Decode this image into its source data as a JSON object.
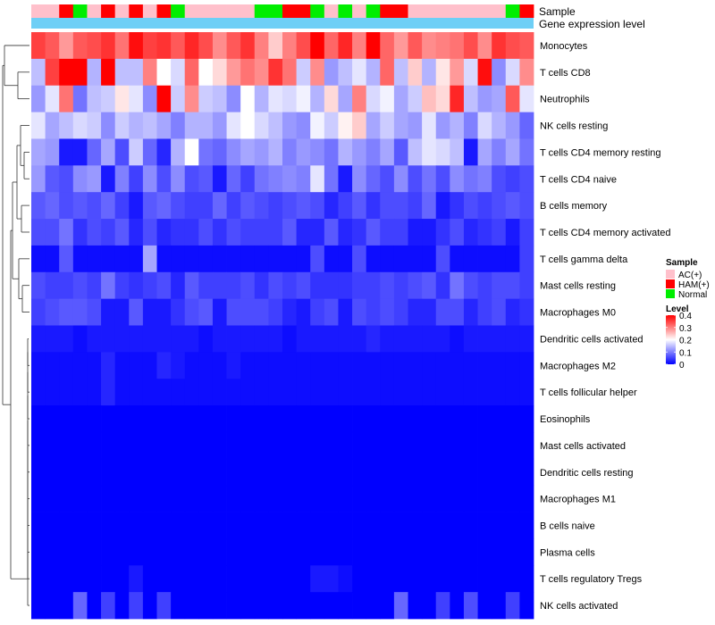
{
  "chart_data": {
    "type": "heatmap",
    "title": "",
    "annotation_tracks": [
      "Sample",
      "Gene expression level"
    ],
    "sample_groups": [
      "AC(+)",
      "AC(+)",
      "HAM(+)",
      "Normal",
      "AC(+)",
      "HAM(+)",
      "AC(+)",
      "HAM(+)",
      "AC(+)",
      "HAM(+)",
      "Normal",
      "AC(+)",
      "AC(+)",
      "AC(+)",
      "AC(+)",
      "AC(+)",
      "Normal",
      "Normal",
      "HAM(+)",
      "HAM(+)",
      "Normal",
      "AC(+)",
      "Normal",
      "AC(+)",
      "Normal",
      "HAM(+)",
      "HAM(+)",
      "AC(+)",
      "AC(+)",
      "AC(+)",
      "AC(+)",
      "AC(+)",
      "AC(+)",
      "AC(+)",
      "Normal",
      "HAM(+)"
    ],
    "rows": [
      {
        "name": "Monocytes",
        "values": [
          0.35,
          0.33,
          0.28,
          0.33,
          0.34,
          0.36,
          0.31,
          0.39,
          0.35,
          0.36,
          0.33,
          0.37,
          0.34,
          0.29,
          0.33,
          0.36,
          0.3,
          0.24,
          0.3,
          0.34,
          0.41,
          0.32,
          0.37,
          0.3,
          0.4,
          0.32,
          0.28,
          0.33,
          0.29,
          0.3,
          0.31,
          0.34,
          0.29,
          0.36,
          0.34,
          0.33
        ]
      },
      {
        "name": "T cells CD8",
        "values": [
          0.15,
          0.35,
          0.4,
          0.4,
          0.14,
          0.4,
          0.15,
          0.15,
          0.3,
          0.2,
          0.17,
          0.32,
          0.2,
          0.23,
          0.28,
          0.31,
          0.29,
          0.36,
          0.31,
          0.16,
          0.29,
          0.12,
          0.15,
          0.18,
          0.14,
          0.32,
          0.15,
          0.24,
          0.14,
          0.22,
          0.28,
          0.17,
          0.39,
          0.11,
          0.17,
          0.29
        ]
      },
      {
        "name": "Neutrophils",
        "values": [
          0.12,
          0.18,
          0.31,
          0.09,
          0.15,
          0.16,
          0.22,
          0.18,
          0.11,
          0.4,
          0.16,
          0.29,
          0.16,
          0.15,
          0.11,
          0.2,
          0.14,
          0.18,
          0.17,
          0.19,
          0.14,
          0.23,
          0.13,
          0.3,
          0.17,
          0.19,
          0.13,
          0.16,
          0.25,
          0.23,
          0.37,
          0.15,
          0.12,
          0.13,
          0.33,
          0.18
        ]
      },
      {
        "name": "NK cells resting",
        "values": [
          0.18,
          0.13,
          0.15,
          0.17,
          0.16,
          0.11,
          0.16,
          0.14,
          0.15,
          0.13,
          0.1,
          0.14,
          0.14,
          0.12,
          0.18,
          0.2,
          0.17,
          0.15,
          0.12,
          0.11,
          0.19,
          0.16,
          0.21,
          0.24,
          0.13,
          0.16,
          0.13,
          0.12,
          0.18,
          0.12,
          0.14,
          0.1,
          0.17,
          0.14,
          0.12,
          0.08
        ]
      },
      {
        "name": "T cells CD4 memory resting",
        "values": [
          0.13,
          0.12,
          0.02,
          0.02,
          0.08,
          0.13,
          0.06,
          0.16,
          0.08,
          0.03,
          0.14,
          0.2,
          0.09,
          0.08,
          0.11,
          0.13,
          0.12,
          0.14,
          0.1,
          0.12,
          0.11,
          0.09,
          0.14,
          0.12,
          0.1,
          0.13,
          0.07,
          0.15,
          0.18,
          0.17,
          0.15,
          0.02,
          0.13,
          0.1,
          0.13,
          0.09
        ]
      },
      {
        "name": "T cells CD4 naive",
        "values": [
          0.12,
          0.07,
          0.06,
          0.11,
          0.12,
          0.02,
          0.1,
          0.05,
          0.11,
          0.06,
          0.11,
          0.06,
          0.07,
          0.02,
          0.08,
          0.05,
          0.09,
          0.1,
          0.11,
          0.1,
          0.18,
          0.09,
          0.02,
          0.11,
          0.08,
          0.06,
          0.11,
          0.06,
          0.09,
          0.06,
          0.11,
          0.09,
          0.1,
          0.06,
          0.05,
          0.06
        ]
      },
      {
        "name": "B cells memory",
        "values": [
          0.07,
          0.08,
          0.06,
          0.07,
          0.06,
          0.08,
          0.05,
          0.02,
          0.07,
          0.08,
          0.06,
          0.05,
          0.05,
          0.08,
          0.05,
          0.07,
          0.06,
          0.05,
          0.06,
          0.07,
          0.06,
          0.03,
          0.05,
          0.07,
          0.04,
          0.06,
          0.06,
          0.05,
          0.08,
          0.02,
          0.04,
          0.06,
          0.05,
          0.06,
          0.07,
          0.06
        ]
      },
      {
        "name": "T cells CD4 memory activated",
        "values": [
          0.06,
          0.06,
          0.09,
          0.04,
          0.06,
          0.05,
          0.07,
          0.03,
          0.06,
          0.03,
          0.04,
          0.04,
          0.06,
          0.04,
          0.06,
          0.05,
          0.05,
          0.05,
          0.07,
          0.03,
          0.03,
          0.07,
          0.03,
          0.04,
          0.07,
          0.05,
          0.05,
          0.02,
          0.02,
          0.04,
          0.06,
          0.03,
          0.04,
          0.05,
          0.02,
          0.05
        ]
      },
      {
        "name": "T cells gamma delta",
        "values": [
          0.01,
          0.01,
          0.07,
          0.01,
          0.01,
          0.01,
          0.01,
          0.01,
          0.13,
          0.01,
          0.01,
          0.01,
          0.01,
          0.01,
          0.01,
          0.01,
          0.01,
          0.01,
          0.01,
          0.01,
          0.06,
          0.01,
          0.01,
          0.06,
          0.01,
          0.01,
          0.01,
          0.01,
          0.01,
          0.06,
          0.01,
          0.01,
          0.01,
          0.01,
          0.01,
          0.05
        ]
      },
      {
        "name": "Mast cells resting",
        "values": [
          0.06,
          0.05,
          0.05,
          0.06,
          0.05,
          0.09,
          0.05,
          0.04,
          0.05,
          0.06,
          0.03,
          0.07,
          0.05,
          0.05,
          0.05,
          0.06,
          0.04,
          0.06,
          0.05,
          0.06,
          0.04,
          0.04,
          0.04,
          0.05,
          0.05,
          0.06,
          0.05,
          0.06,
          0.07,
          0.04,
          0.09,
          0.06,
          0.05,
          0.06,
          0.06,
          0.05
        ]
      },
      {
        "name": "Macrophages M0",
        "values": [
          0.05,
          0.06,
          0.07,
          0.07,
          0.06,
          0.02,
          0.02,
          0.07,
          0.02,
          0.02,
          0.04,
          0.06,
          0.07,
          0.02,
          0.06,
          0.06,
          0.06,
          0.05,
          0.03,
          0.02,
          0.05,
          0.06,
          0.02,
          0.06,
          0.05,
          0.06,
          0.05,
          0.03,
          0.03,
          0.06,
          0.06,
          0.03,
          0.05,
          0.06,
          0.03,
          0.04
        ]
      },
      {
        "name": "Dendritic cells activated",
        "values": [
          0.02,
          0.02,
          0.02,
          0.01,
          0.02,
          0.02,
          0.02,
          0.02,
          0.02,
          0.02,
          0.02,
          0.02,
          0.01,
          0.02,
          0.02,
          0.02,
          0.02,
          0.02,
          0.01,
          0.02,
          0.02,
          0.02,
          0.02,
          0.02,
          0.03,
          0.02,
          0.02,
          0.02,
          0.02,
          0.02,
          0.01,
          0.02,
          0.02,
          0.02,
          0.02,
          0.02
        ]
      },
      {
        "name": "Macrophages M2",
        "values": [
          0.01,
          0.01,
          0.01,
          0.01,
          0.01,
          0.03,
          0.01,
          0.01,
          0.01,
          0.03,
          0.02,
          0.01,
          0.01,
          0.01,
          0.02,
          0.01,
          0.01,
          0.01,
          0.01,
          0.01,
          0.01,
          0.01,
          0.01,
          0.01,
          0.01,
          0.01,
          0.01,
          0.01,
          0.01,
          0.01,
          0.01,
          0.01,
          0.01,
          0.01,
          0.01,
          0.01
        ]
      },
      {
        "name": "T cells follicular helper",
        "values": [
          0.01,
          0.01,
          0.01,
          0.01,
          0.01,
          0.03,
          0.01,
          0.01,
          0.01,
          0.01,
          0.01,
          0.01,
          0.01,
          0.01,
          0.01,
          0.01,
          0.01,
          0.01,
          0.01,
          0.01,
          0.01,
          0.01,
          0.01,
          0.01,
          0.01,
          0.01,
          0.01,
          0.01,
          0.01,
          0.01,
          0.01,
          0.01,
          0.01,
          0.01,
          0.01,
          0.01
        ]
      },
      {
        "name": "Eosinophils",
        "values": [
          0.0,
          0.0,
          0.0,
          0.0,
          0.0,
          0.0,
          0.0,
          0.0,
          0.0,
          0.0,
          0.0,
          0.0,
          0.0,
          0.0,
          0.0,
          0.0,
          0.0,
          0.0,
          0.0,
          0.0,
          0.0,
          0.0,
          0.0,
          0.0,
          0.0,
          0.0,
          0.0,
          0.0,
          0.0,
          0.0,
          0.0,
          0.0,
          0.0,
          0.0,
          0.0,
          0.0
        ]
      },
      {
        "name": "Mast cells activated",
        "values": [
          0.0,
          0.0,
          0.0,
          0.0,
          0.0,
          0.0,
          0.0,
          0.0,
          0.0,
          0.0,
          0.0,
          0.0,
          0.0,
          0.0,
          0.0,
          0.0,
          0.0,
          0.0,
          0.0,
          0.0,
          0.0,
          0.0,
          0.0,
          0.0,
          0.0,
          0.0,
          0.0,
          0.0,
          0.0,
          0.0,
          0.0,
          0.0,
          0.0,
          0.0,
          0.0,
          0.0
        ]
      },
      {
        "name": "Dendritic cells resting",
        "values": [
          0.0,
          0.0,
          0.0,
          0.0,
          0.0,
          0.0,
          0.0,
          0.0,
          0.0,
          0.0,
          0.0,
          0.0,
          0.0,
          0.0,
          0.0,
          0.0,
          0.0,
          0.0,
          0.0,
          0.0,
          0.0,
          0.0,
          0.0,
          0.0,
          0.0,
          0.0,
          0.0,
          0.0,
          0.0,
          0.0,
          0.0,
          0.0,
          0.0,
          0.0,
          0.0,
          0.0
        ]
      },
      {
        "name": "Macrophages M1",
        "values": [
          0.0,
          0.0,
          0.0,
          0.0,
          0.0,
          0.0,
          0.0,
          0.0,
          0.0,
          0.0,
          0.0,
          0.0,
          0.0,
          0.0,
          0.0,
          0.0,
          0.0,
          0.0,
          0.0,
          0.0,
          0.0,
          0.0,
          0.0,
          0.0,
          0.0,
          0.0,
          0.0,
          0.0,
          0.0,
          0.0,
          0.0,
          0.0,
          0.0,
          0.0,
          0.0,
          0.0
        ]
      },
      {
        "name": "B cells naive",
        "values": [
          0.0,
          0.0,
          0.0,
          0.0,
          0.0,
          0.0,
          0.0,
          0.0,
          0.0,
          0.0,
          0.0,
          0.0,
          0.0,
          0.0,
          0.0,
          0.0,
          0.0,
          0.0,
          0.0,
          0.0,
          0.0,
          0.0,
          0.0,
          0.0,
          0.0,
          0.0,
          0.0,
          0.0,
          0.0,
          0.0,
          0.0,
          0.0,
          0.0,
          0.0,
          0.0,
          0.0
        ]
      },
      {
        "name": "Plasma cells",
        "values": [
          0.0,
          0.0,
          0.0,
          0.0,
          0.0,
          0.0,
          0.0,
          0.0,
          0.0,
          0.0,
          0.0,
          0.0,
          0.0,
          0.0,
          0.0,
          0.0,
          0.0,
          0.0,
          0.0,
          0.0,
          0.0,
          0.0,
          0.0,
          0.0,
          0.0,
          0.0,
          0.0,
          0.0,
          0.0,
          0.0,
          0.0,
          0.0,
          0.0,
          0.0,
          0.0,
          0.0
        ]
      },
      {
        "name": "T cells regulatory  Tregs",
        "values": [
          0.0,
          0.0,
          0.0,
          0.0,
          0.0,
          0.0,
          0.0,
          0.02,
          0.0,
          0.0,
          0.0,
          0.0,
          0.0,
          0.0,
          0.0,
          0.0,
          0.0,
          0.0,
          0.0,
          0.0,
          0.02,
          0.02,
          0.01,
          0.0,
          0.0,
          0.0,
          0.0,
          0.0,
          0.0,
          0.0,
          0.0,
          0.0,
          0.0,
          0.0,
          0.0,
          0.0
        ]
      },
      {
        "name": "NK cells activated",
        "values": [
          0.0,
          0.0,
          0.0,
          0.08,
          0.0,
          0.05,
          0.0,
          0.05,
          0.0,
          0.05,
          0.0,
          0.0,
          0.0,
          0.0,
          0.0,
          0.0,
          0.0,
          0.0,
          0.0,
          0.0,
          0.0,
          0.0,
          0.0,
          0.0,
          0.0,
          0.0,
          0.08,
          0.0,
          0.0,
          0.05,
          0.0,
          0.06,
          0.0,
          0.0,
          0.05,
          0.0
        ]
      }
    ],
    "legend": {
      "sample_title": "Sample",
      "sample_entries": [
        {
          "label": "AC(+)",
          "color": "#ffc0cb"
        },
        {
          "label": "HAM(+)",
          "color": "#ff0000"
        },
        {
          "label": "Normal",
          "color": "#00ee00"
        }
      ],
      "level_title": "Level",
      "level_ticks": [
        "0.4",
        "0.3",
        "0.2",
        "0.1",
        "0"
      ],
      "level_range": [
        0,
        0.4
      ]
    },
    "colors": {
      "low": "#0000ff",
      "mid": "#ffffff",
      "high": "#ff0000",
      "expression_bar": "#6ecff6"
    }
  }
}
